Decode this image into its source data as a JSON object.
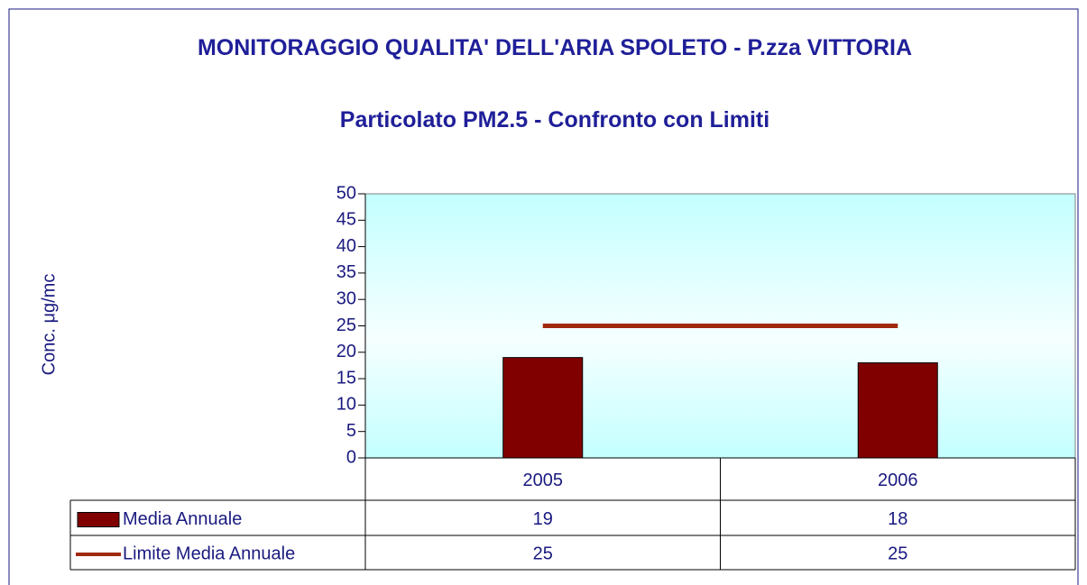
{
  "chart_data": {
    "type": "bar",
    "title": "MONITORAGGIO QUALITA' DELL'ARIA  SPOLETO - P.zza VITTORIA",
    "subtitle": "Particolato PM2.5 - Confronto con Limiti",
    "y_label": "Conc. μg/mc",
    "categories": [
      "2005",
      "2006"
    ],
    "series": [
      {
        "name": "Media Annuale",
        "type": "bar",
        "color": "#800000",
        "values": [
          19,
          18
        ]
      },
      {
        "name": "Limite Media Annuale",
        "type": "line",
        "color": "#a0290f",
        "values": [
          25,
          25
        ]
      }
    ],
    "ylim": [
      0,
      50
    ],
    "yticks": [
      0,
      5,
      10,
      15,
      20,
      25,
      30,
      35,
      40,
      45,
      50
    ],
    "data_table": true
  }
}
